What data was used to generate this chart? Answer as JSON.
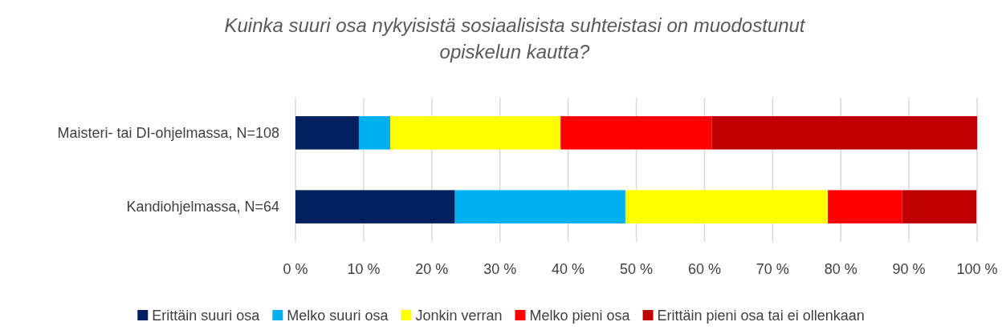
{
  "chart_data": {
    "type": "bar",
    "orientation": "horizontal",
    "stacked": true,
    "title": "Kuinka suuri osa nykyisistä sosiaalisista suhteistasi on muodostunut opiskelun kautta?",
    "categories": [
      "Maisteri- tai DI-ohjelmassa, N=108",
      "Kandiohjelmassa, N=64"
    ],
    "series": [
      {
        "name": "Erittäin suuri osa",
        "color": "#002060",
        "values": [
          9.3,
          23.4
        ]
      },
      {
        "name": "Melko suuri osa",
        "color": "#00b0f0",
        "values": [
          4.6,
          25.0
        ]
      },
      {
        "name": "Jonkin verran",
        "color": "#ffff00",
        "values": [
          25.0,
          29.7
        ]
      },
      {
        "name": "Melko pieni osa",
        "color": "#ff0000",
        "values": [
          22.2,
          10.9
        ]
      },
      {
        "name": "Erittäin pieni osa tai ei ollenkaan",
        "color": "#c00000",
        "values": [
          38.9,
          10.9
        ]
      }
    ],
    "xlim": [
      0,
      100
    ],
    "xticks": [
      {
        "value": 0,
        "label": "0 %"
      },
      {
        "value": 10,
        "label": "10 %"
      },
      {
        "value": 20,
        "label": "20 %"
      },
      {
        "value": 30,
        "label": "30 %"
      },
      {
        "value": 40,
        "label": "40 %"
      },
      {
        "value": 50,
        "label": "50 %"
      },
      {
        "value": 60,
        "label": "60 %"
      },
      {
        "value": 70,
        "label": "70 %"
      },
      {
        "value": 80,
        "label": "80 %"
      },
      {
        "value": 90,
        "label": "90 %"
      },
      {
        "value": 100,
        "label": "100 %"
      }
    ],
    "grid": "x",
    "legend": "bottom"
  }
}
